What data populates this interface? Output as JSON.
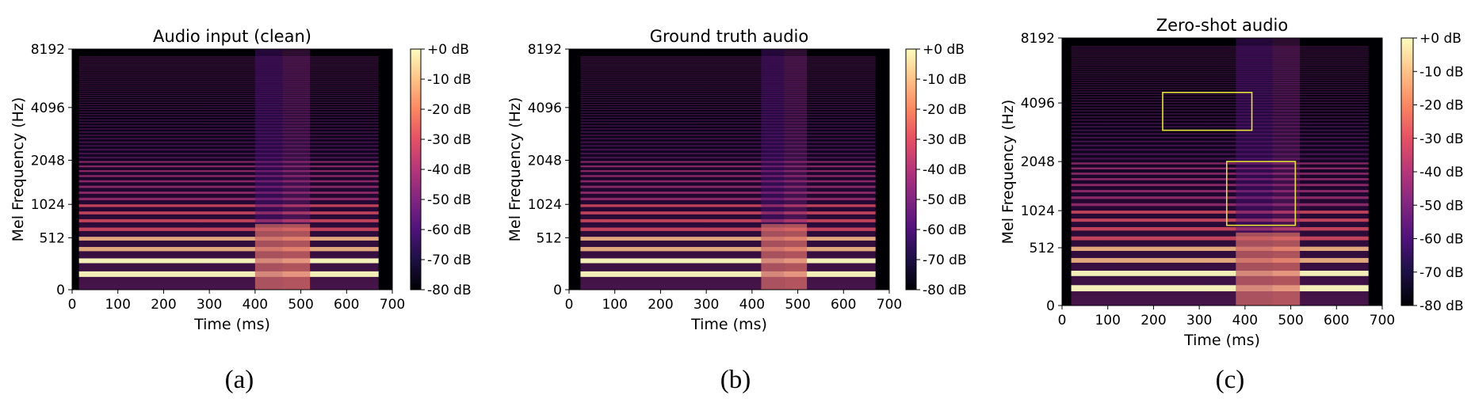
{
  "colors": {
    "magma_stops": [
      "#000004",
      "#1c1044",
      "#4f127b",
      "#812581",
      "#b5367a",
      "#e55064",
      "#fb8761",
      "#fec287",
      "#fcfdbf"
    ],
    "highlight_box": "#e8e23a"
  },
  "chart_data": [
    {
      "type": "heatmap",
      "panel_label": "(a)",
      "title": "Audio input (clean)",
      "xlabel": "Time (ms)",
      "ylabel": "Mel Frequency (Hz)",
      "xlim": [
        0,
        700
      ],
      "x_ticks": [
        "0",
        "100",
        "200",
        "300",
        "400",
        "500",
        "600",
        "700"
      ],
      "y_scale": "mel",
      "y_ticks": [
        "0",
        "512",
        "1024",
        "2048",
        "4096",
        "8192"
      ],
      "colorbar": {
        "range_db": [
          -80,
          0
        ],
        "tick_labels": [
          "+0 dB",
          "-10 dB",
          "-20 dB",
          "-30 dB",
          "-40 dB",
          "-50 dB",
          "-60 dB",
          "-70 dB",
          "-80 dB"
        ]
      },
      "signal": {
        "onset_ms": 15,
        "offset_ms": 670,
        "transition_ms": [
          [
            400,
            460
          ],
          [
            460,
            520
          ]
        ]
      },
      "highlight_boxes": []
    },
    {
      "type": "heatmap",
      "panel_label": "(b)",
      "title": "Ground truth audio",
      "xlabel": "Time (ms)",
      "ylabel": "Mel Frequency (Hz)",
      "xlim": [
        0,
        700
      ],
      "x_ticks": [
        "0",
        "100",
        "200",
        "300",
        "400",
        "500",
        "600",
        "700"
      ],
      "y_scale": "mel",
      "y_ticks": [
        "0",
        "512",
        "1024",
        "2048",
        "4096",
        "8192"
      ],
      "colorbar": {
        "range_db": [
          -80,
          0
        ],
        "tick_labels": [
          "+0 dB",
          "-10 dB",
          "-20 dB",
          "-30 dB",
          "-40 dB",
          "-50 dB",
          "-60 dB",
          "-70 dB",
          "-80 dB"
        ]
      },
      "signal": {
        "onset_ms": 25,
        "offset_ms": 670,
        "transition_ms": [
          [
            420,
            470
          ],
          [
            470,
            520
          ]
        ]
      },
      "highlight_boxes": []
    },
    {
      "type": "heatmap",
      "panel_label": "(c)",
      "title": "Zero-shot audio",
      "xlabel": "Time (ms)",
      "ylabel": "Mel Frequency (Hz)",
      "xlim": [
        0,
        700
      ],
      "x_ticks": [
        "0",
        "100",
        "200",
        "300",
        "400",
        "500",
        "600",
        "700"
      ],
      "y_scale": "mel",
      "y_ticks": [
        "0",
        "512",
        "1024",
        "2048",
        "4096",
        "8192"
      ],
      "colorbar": {
        "range_db": [
          -80,
          0
        ],
        "tick_labels": [
          "+0 dB",
          "-10 dB",
          "-20 dB",
          "-30 dB",
          "-40 dB",
          "-50 dB",
          "-60 dB",
          "-70 dB",
          "-80 dB"
        ]
      },
      "signal": {
        "onset_ms": 20,
        "offset_ms": 670,
        "transition_ms": [
          [
            380,
            460
          ],
          [
            460,
            520
          ]
        ]
      },
      "highlight_boxes": [
        {
          "x_ms": [
            220,
            415
          ],
          "y_hz": [
            3000,
            4600
          ]
        },
        {
          "x_ms": [
            360,
            510
          ],
          "y_hz": [
            800,
            2050
          ]
        }
      ]
    }
  ]
}
